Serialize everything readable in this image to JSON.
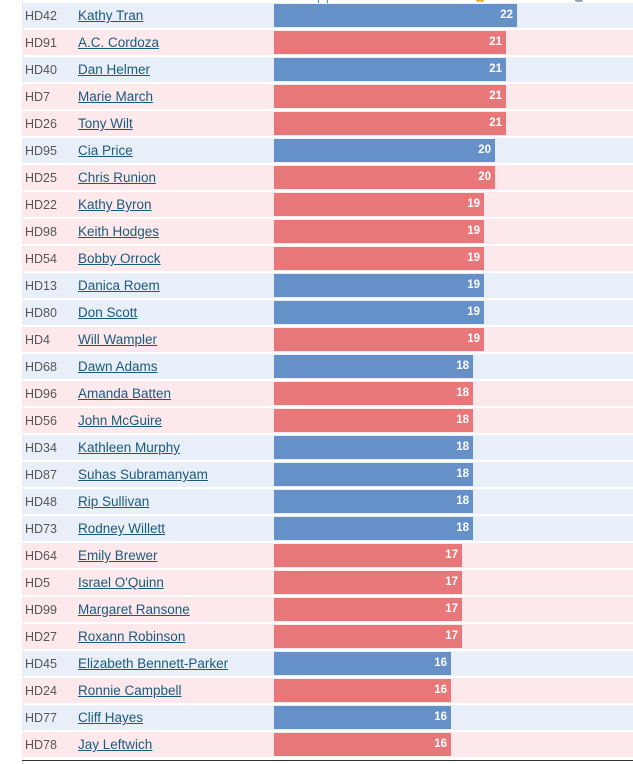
{
  "chart_data": {
    "type": "bar",
    "orientation": "horizontal",
    "colors": {
      "R": "#e8777a",
      "D": "#6690c8"
    },
    "rows": [
      {
        "district": "HD42",
        "name": "Kathy Tran",
        "value": 22,
        "party": "D"
      },
      {
        "district": "HD91",
        "name": "A.C. Cordoza",
        "value": 21,
        "party": "R"
      },
      {
        "district": "HD40",
        "name": "Dan Helmer",
        "value": 21,
        "party": "D"
      },
      {
        "district": "HD7",
        "name": "Marie March",
        "value": 21,
        "party": "R"
      },
      {
        "district": "HD26",
        "name": "Tony Wilt",
        "value": 21,
        "party": "R"
      },
      {
        "district": "HD95",
        "name": "Cia Price",
        "value": 20,
        "party": "D"
      },
      {
        "district": "HD25",
        "name": "Chris Runion",
        "value": 20,
        "party": "R"
      },
      {
        "district": "HD22",
        "name": "Kathy Byron",
        "value": 19,
        "party": "R"
      },
      {
        "district": "HD98",
        "name": "Keith Hodges",
        "value": 19,
        "party": "R"
      },
      {
        "district": "HD54",
        "name": "Bobby Orrock",
        "value": 19,
        "party": "R"
      },
      {
        "district": "HD13",
        "name": "Danica Roem",
        "value": 19,
        "party": "D"
      },
      {
        "district": "HD80",
        "name": "Don Scott",
        "value": 19,
        "party": "D"
      },
      {
        "district": "HD4",
        "name": "Will Wampler",
        "value": 19,
        "party": "R"
      },
      {
        "district": "HD68",
        "name": "Dawn Adams",
        "value": 18,
        "party": "D"
      },
      {
        "district": "HD96",
        "name": "Amanda Batten",
        "value": 18,
        "party": "R"
      },
      {
        "district": "HD56",
        "name": "John McGuire",
        "value": 18,
        "party": "R"
      },
      {
        "district": "HD34",
        "name": "Kathleen Murphy",
        "value": 18,
        "party": "D"
      },
      {
        "district": "HD87",
        "name": "Suhas Subramanyam",
        "value": 18,
        "party": "D"
      },
      {
        "district": "HD48",
        "name": "Rip Sullivan",
        "value": 18,
        "party": "D"
      },
      {
        "district": "HD73",
        "name": "Rodney Willett",
        "value": 18,
        "party": "D"
      },
      {
        "district": "HD64",
        "name": "Emily Brewer",
        "value": 17,
        "party": "R"
      },
      {
        "district": "HD5",
        "name": "Israel O'Quinn",
        "value": 17,
        "party": "R"
      },
      {
        "district": "HD99",
        "name": "Margaret Ransone",
        "value": 17,
        "party": "R"
      },
      {
        "district": "HD27",
        "name": "Roxann Robinson",
        "value": 17,
        "party": "R"
      },
      {
        "district": "HD45",
        "name": "Elizabeth Bennett-Parker",
        "value": 16,
        "party": "D"
      },
      {
        "district": "HD24",
        "name": "Ronnie Campbell",
        "value": 16,
        "party": "R"
      },
      {
        "district": "HD77",
        "name": "Cliff Hayes",
        "value": 16,
        "party": "D"
      },
      {
        "district": "HD78",
        "name": "Jay Leftwich",
        "value": 16,
        "party": "R"
      }
    ]
  }
}
